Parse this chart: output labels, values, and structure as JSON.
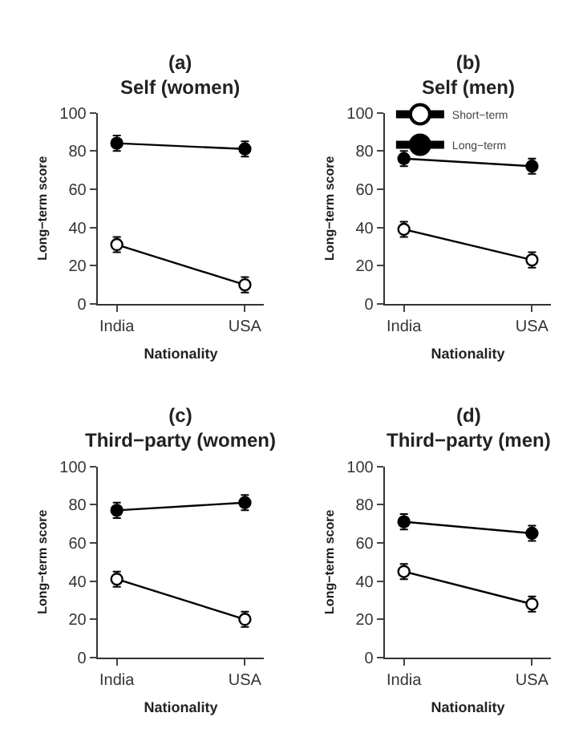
{
  "chart_data": [
    {
      "type": "line",
      "title": "(a)",
      "subtitle": "Self (women)",
      "xlabel": "Nationality",
      "ylabel": "Long−term score",
      "categories": [
        "India",
        "USA"
      ],
      "ylim": [
        0,
        100
      ],
      "yticks": [
        0,
        20,
        40,
        60,
        80,
        100
      ],
      "legend": false,
      "marker": "circle",
      "series": [
        {
          "color": "#ffffff",
          "values": [
            31,
            10
          ],
          "errors": [
            4,
            4
          ]
        },
        {
          "color": "#000000",
          "values": [
            84,
            81
          ],
          "errors": [
            4,
            4
          ]
        }
      ]
    },
    {
      "type": "line",
      "title": "(b)",
      "subtitle": "Self (men)",
      "xlabel": "Nationality",
      "ylabel": "Long−term score",
      "categories": [
        "India",
        "USA"
      ],
      "ylim": [
        0,
        100
      ],
      "yticks": [
        0,
        20,
        40,
        60,
        80,
        100
      ],
      "legend": "top left",
      "marker": "circle",
      "series": [
        {
          "name": "Short−term",
          "color": "#ffffff",
          "values": [
            39,
            23
          ],
          "errors": [
            4,
            4
          ]
        },
        {
          "name": "Long−term",
          "color": "#000000",
          "values": [
            76,
            72
          ],
          "errors": [
            4,
            4
          ]
        }
      ]
    },
    {
      "type": "line",
      "title": "(c)",
      "subtitle": "Third−party (women)",
      "xlabel": "Nationality",
      "ylabel": "Long−term score",
      "categories": [
        "India",
        "USA"
      ],
      "ylim": [
        0,
        100
      ],
      "yticks": [
        0,
        20,
        40,
        60,
        80,
        100
      ],
      "legend": false,
      "marker": "circle",
      "series": [
        {
          "color": "#ffffff",
          "values": [
            41,
            20
          ],
          "errors": [
            4,
            4
          ]
        },
        {
          "color": "#000000",
          "values": [
            77,
            81
          ],
          "errors": [
            4,
            4
          ]
        }
      ]
    },
    {
      "type": "line",
      "title": "(d)",
      "subtitle": "Third−party (men)",
      "xlabel": "Nationality",
      "ylabel": "Long−term score",
      "categories": [
        "India",
        "USA"
      ],
      "ylim": [
        0,
        100
      ],
      "yticks": [
        0,
        20,
        40,
        60,
        80,
        100
      ],
      "legend": false,
      "marker": "circle",
      "series": [
        {
          "color": "#ffffff",
          "values": [
            45,
            28
          ],
          "errors": [
            4,
            4
          ]
        },
        {
          "color": "#000000",
          "values": [
            71,
            65
          ],
          "errors": [
            4,
            4
          ]
        }
      ]
    }
  ]
}
